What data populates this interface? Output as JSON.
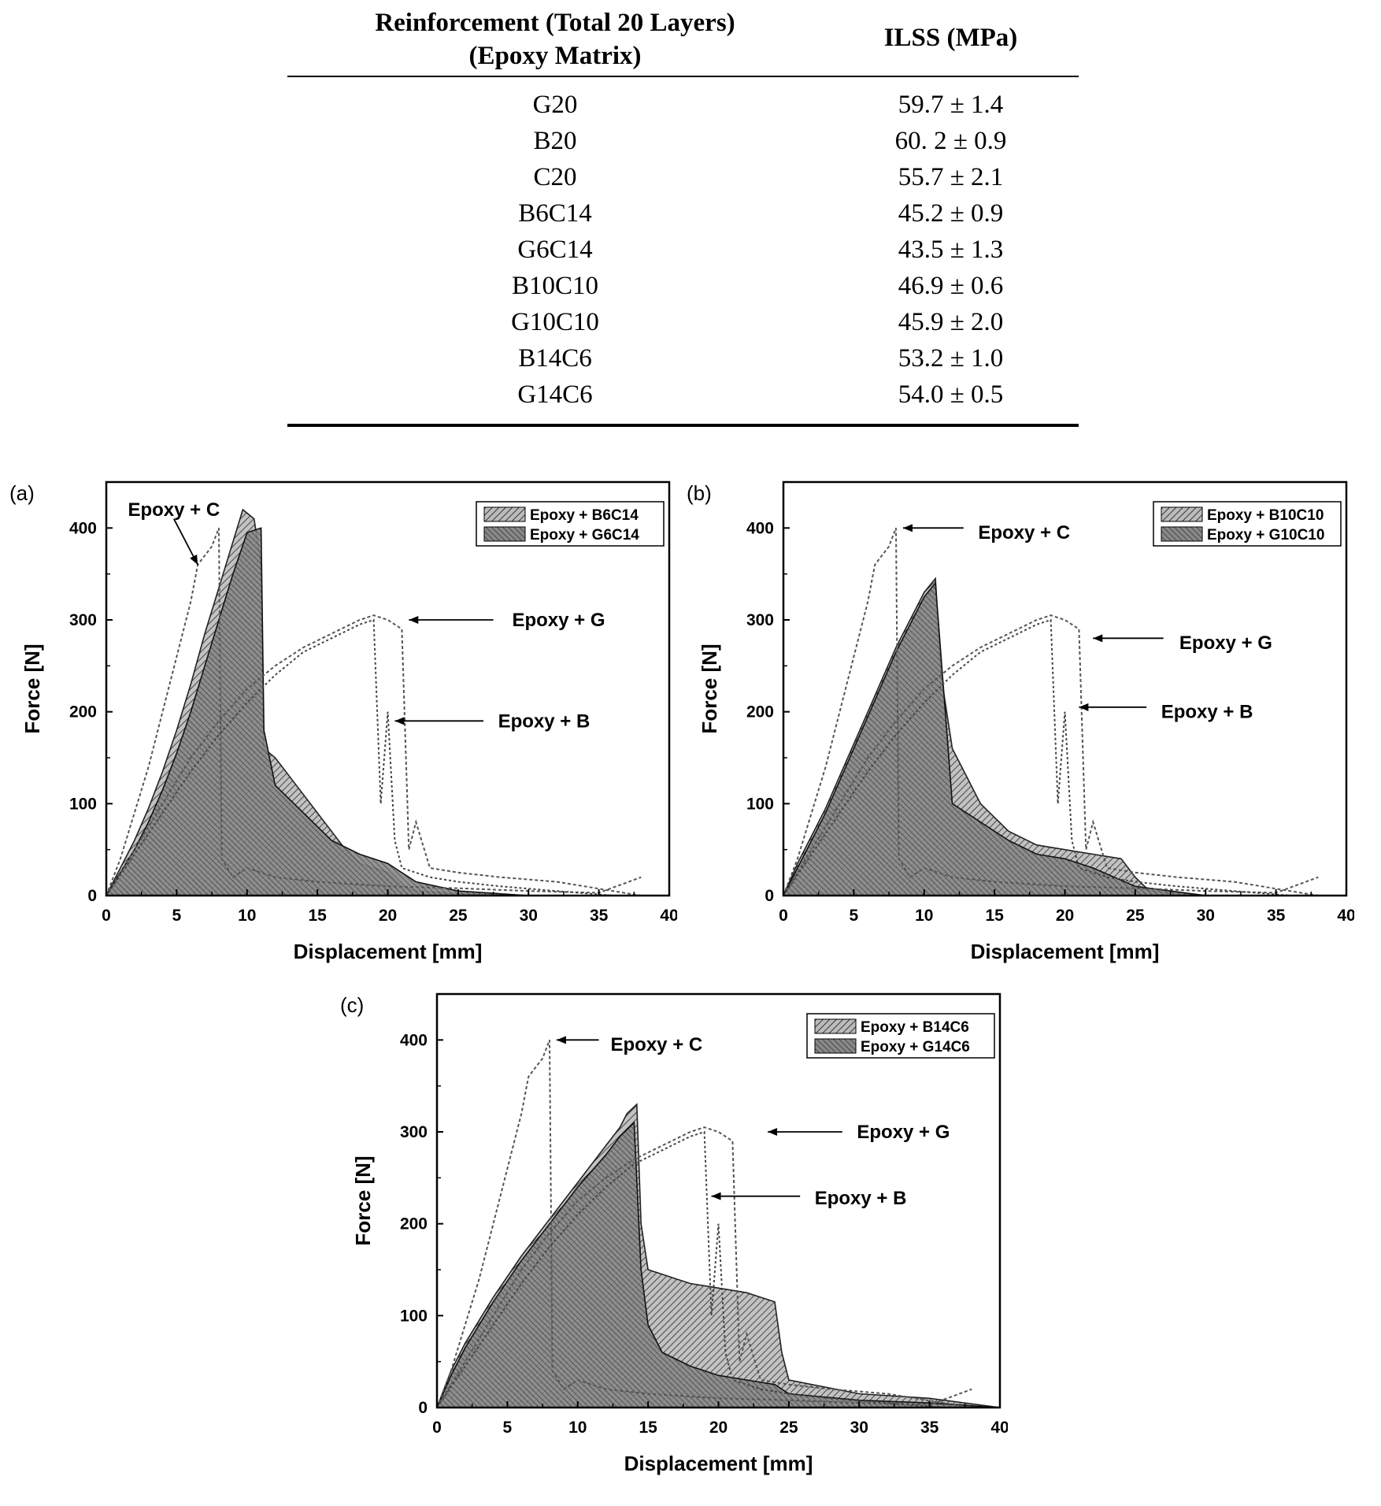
{
  "table": {
    "headers": [
      "Reinforcement (Total 20 Layers)\n(Epoxy Matrix)",
      "ILSS (MPa)"
    ],
    "header_line1": "Reinforcement (Total 20 Layers)",
    "header_line2": "(Epoxy Matrix)",
    "header_col2": "ILSS (MPa)",
    "rows": [
      {
        "name": "G20",
        "ilss": "59.7 ± 1.4"
      },
      {
        "name": "B20",
        "ilss": "60. 2 ± 0.9"
      },
      {
        "name": "C20",
        "ilss": "55.7 ± 2.1"
      },
      {
        "name": "B6C14",
        "ilss": "45.2 ± 0.9"
      },
      {
        "name": "G6C14",
        "ilss": "43.5 ± 1.3"
      },
      {
        "name": "B10C10",
        "ilss": "46.9 ± 0.6"
      },
      {
        "name": "G10C10",
        "ilss": "45.9 ± 2.0"
      },
      {
        "name": "B14C6",
        "ilss": "53.2 ± 1.0"
      },
      {
        "name": "G14C6",
        "ilss": "54.0 ± 0.5"
      }
    ]
  },
  "chart_data": [
    {
      "panel": "(a)",
      "type": "area",
      "xlabel": "Displacement [mm]",
      "ylabel": "Force [N]",
      "xlim": [
        0,
        40
      ],
      "ylim": [
        0,
        450
      ],
      "xticks": [
        0,
        5,
        10,
        15,
        20,
        25,
        30,
        35,
        40
      ],
      "yticks": [
        0,
        100,
        200,
        300,
        400
      ],
      "legend": [
        "Epoxy + B6C14",
        "Epoxy + G6C14"
      ],
      "legend_position": "top-right",
      "annotations": [
        "Epoxy + C",
        "Epoxy + G",
        "Epoxy + B"
      ],
      "series": [
        {
          "name": "Epoxy + B6C14",
          "x": [
            0,
            1,
            2,
            3,
            4,
            5,
            6,
            7,
            8,
            9,
            9.7,
            10.5,
            11,
            11.2,
            12,
            13,
            14,
            15,
            16,
            17,
            18,
            19,
            20,
            21,
            22,
            25,
            30
          ],
          "y": [
            0,
            30,
            60,
            95,
            135,
            180,
            230,
            285,
            335,
            385,
            420,
            410,
            360,
            160,
            150,
            130,
            110,
            90,
            70,
            50,
            35,
            30,
            25,
            10,
            5,
            2,
            0
          ]
        },
        {
          "name": "Epoxy + G6C14",
          "x": [
            0,
            1,
            2,
            3,
            4,
            5,
            6,
            7,
            8,
            9,
            10,
            11,
            11.2,
            12,
            14,
            16,
            18,
            20,
            22,
            25,
            30
          ],
          "y": [
            0,
            25,
            50,
            80,
            115,
            155,
            200,
            250,
            300,
            350,
            395,
            400,
            180,
            120,
            90,
            60,
            45,
            35,
            15,
            5,
            0
          ]
        },
        {
          "name": "Epoxy + C",
          "x": [
            0,
            1,
            2,
            3,
            4,
            5,
            6,
            6.5,
            7,
            7.5,
            8,
            8.2,
            9,
            10,
            12,
            15,
            20,
            25,
            30,
            35,
            38
          ],
          "y": [
            0,
            40,
            90,
            140,
            200,
            260,
            320,
            360,
            370,
            380,
            400,
            40,
            20,
            30,
            20,
            15,
            10,
            8,
            5,
            3,
            20
          ]
        },
        {
          "name": "Epoxy + G",
          "x": [
            0,
            2,
            4,
            6,
            8,
            10,
            12,
            14,
            16,
            18,
            19,
            20,
            21,
            21.5,
            22,
            23,
            25,
            28,
            32,
            36,
            38
          ],
          "y": [
            0,
            50,
            100,
            150,
            190,
            225,
            250,
            270,
            285,
            300,
            305,
            300,
            290,
            50,
            80,
            30,
            25,
            20,
            15,
            5,
            0
          ]
        },
        {
          "name": "Epoxy + B",
          "x": [
            0,
            2,
            4,
            6,
            8,
            10,
            12,
            14,
            16,
            18,
            19,
            19.5,
            20,
            20.5,
            21,
            23,
            25,
            28,
            32,
            36
          ],
          "y": [
            0,
            45,
            90,
            135,
            175,
            210,
            240,
            265,
            280,
            295,
            300,
            100,
            200,
            60,
            30,
            20,
            15,
            10,
            5,
            0
          ]
        }
      ]
    },
    {
      "panel": "(b)",
      "type": "area",
      "xlabel": "Displacement [mm]",
      "ylabel": "Force [N]",
      "xlim": [
        0,
        40
      ],
      "ylim": [
        0,
        450
      ],
      "xticks": [
        0,
        5,
        10,
        15,
        20,
        25,
        30,
        35,
        40
      ],
      "yticks": [
        0,
        100,
        200,
        300,
        400
      ],
      "legend": [
        "Epoxy + B10C10",
        "Epoxy + G10C10"
      ],
      "legend_position": "top-right",
      "annotations": [
        "Epoxy + C",
        "Epoxy + G",
        "Epoxy + B"
      ],
      "series": [
        {
          "name": "Epoxy + B10C10",
          "x": [
            0,
            1,
            2,
            3,
            4,
            5,
            6,
            7,
            8,
            9,
            10,
            10.8,
            11.2,
            12,
            13,
            14,
            15,
            16,
            18,
            20,
            22,
            24,
            25,
            26,
            30
          ],
          "y": [
            0,
            35,
            65,
            95,
            130,
            165,
            200,
            235,
            270,
            300,
            330,
            345,
            240,
            160,
            130,
            100,
            85,
            70,
            55,
            50,
            45,
            40,
            20,
            5,
            0
          ]
        },
        {
          "name": "Epoxy + G10C10",
          "x": [
            0,
            1,
            2,
            3,
            4,
            5,
            6,
            7,
            8,
            9,
            10,
            10.8,
            11.5,
            12,
            14,
            16,
            18,
            20,
            22,
            25,
            30
          ],
          "y": [
            0,
            30,
            60,
            90,
            125,
            160,
            195,
            230,
            265,
            295,
            325,
            340,
            200,
            100,
            80,
            60,
            45,
            40,
            30,
            10,
            0
          ]
        },
        {
          "name": "Epoxy + C",
          "x": [
            0,
            1,
            2,
            3,
            4,
            5,
            6,
            6.5,
            7,
            7.5,
            8,
            8.2,
            9,
            10,
            12,
            15,
            20,
            25,
            30,
            35,
            38
          ],
          "y": [
            0,
            40,
            90,
            140,
            200,
            260,
            320,
            360,
            370,
            380,
            400,
            40,
            20,
            30,
            20,
            15,
            10,
            8,
            5,
            3,
            20
          ]
        },
        {
          "name": "Epoxy + G",
          "x": [
            0,
            2,
            4,
            6,
            8,
            10,
            12,
            14,
            16,
            18,
            19,
            20,
            21,
            21.5,
            22,
            23,
            25,
            28,
            32,
            36,
            38
          ],
          "y": [
            0,
            50,
            100,
            150,
            190,
            225,
            250,
            270,
            285,
            300,
            305,
            300,
            290,
            50,
            80,
            30,
            25,
            20,
            15,
            5,
            0
          ]
        },
        {
          "name": "Epoxy + B",
          "x": [
            0,
            2,
            4,
            6,
            8,
            10,
            12,
            14,
            16,
            18,
            19,
            19.5,
            20,
            20.5,
            21,
            23,
            25,
            28,
            32,
            36
          ],
          "y": [
            0,
            45,
            90,
            135,
            175,
            210,
            240,
            265,
            280,
            295,
            300,
            100,
            200,
            60,
            30,
            20,
            15,
            10,
            5,
            0
          ]
        }
      ]
    },
    {
      "panel": "(c)",
      "type": "area",
      "xlabel": "Displacement [mm]",
      "ylabel": "Force [N]",
      "xlim": [
        0,
        40
      ],
      "ylim": [
        0,
        450
      ],
      "xticks": [
        0,
        5,
        10,
        15,
        20,
        25,
        30,
        35,
        40
      ],
      "yticks": [
        0,
        100,
        200,
        300,
        400
      ],
      "legend": [
        "Epoxy + B14C6",
        "Epoxy + G14C6"
      ],
      "legend_position": "top-right",
      "annotations": [
        "Epoxy + C",
        "Epoxy + G",
        "Epoxy + B"
      ],
      "series": [
        {
          "name": "Epoxy + B14C6",
          "x": [
            0,
            1,
            2,
            4,
            6,
            8,
            10,
            12,
            13,
            13.5,
            14.2,
            14.5,
            15,
            16,
            17,
            18,
            20,
            22,
            23,
            24,
            24.5,
            25,
            30,
            35,
            40
          ],
          "y": [
            0,
            40,
            70,
            120,
            165,
            205,
            245,
            285,
            305,
            320,
            330,
            200,
            150,
            145,
            140,
            135,
            130,
            125,
            120,
            115,
            60,
            30,
            15,
            10,
            0
          ]
        },
        {
          "name": "Epoxy + G14C6",
          "x": [
            0,
            1,
            2,
            4,
            6,
            8,
            10,
            12,
            13,
            14,
            14.5,
            15,
            16,
            18,
            20,
            22,
            24,
            25,
            30,
            35,
            40
          ],
          "y": [
            0,
            35,
            65,
            115,
            160,
            200,
            240,
            275,
            295,
            310,
            150,
            90,
            60,
            45,
            35,
            30,
            25,
            15,
            8,
            5,
            0
          ]
        },
        {
          "name": "Epoxy + C",
          "x": [
            0,
            1,
            2,
            3,
            4,
            5,
            6,
            6.5,
            7,
            7.5,
            8,
            8.2,
            9,
            10,
            12,
            15,
            20,
            25,
            30,
            35,
            38
          ],
          "y": [
            0,
            40,
            90,
            140,
            200,
            260,
            320,
            360,
            370,
            380,
            400,
            40,
            20,
            30,
            20,
            15,
            10,
            8,
            5,
            3,
            20
          ]
        },
        {
          "name": "Epoxy + G",
          "x": [
            0,
            2,
            4,
            6,
            8,
            10,
            12,
            14,
            16,
            18,
            19,
            20,
            21,
            21.5,
            22,
            23,
            25,
            28,
            32,
            36,
            38
          ],
          "y": [
            0,
            50,
            100,
            150,
            190,
            225,
            250,
            270,
            285,
            300,
            305,
            300,
            290,
            50,
            80,
            30,
            25,
            20,
            15,
            5,
            0
          ]
        },
        {
          "name": "Epoxy + B",
          "x": [
            0,
            2,
            4,
            6,
            8,
            10,
            12,
            14,
            16,
            18,
            19,
            19.5,
            20,
            20.5,
            21,
            23,
            25,
            28,
            32,
            36
          ],
          "y": [
            0,
            45,
            90,
            135,
            175,
            210,
            240,
            265,
            280,
            295,
            300,
            100,
            200,
            60,
            30,
            20,
            15,
            10,
            5,
            0
          ]
        }
      ]
    }
  ]
}
